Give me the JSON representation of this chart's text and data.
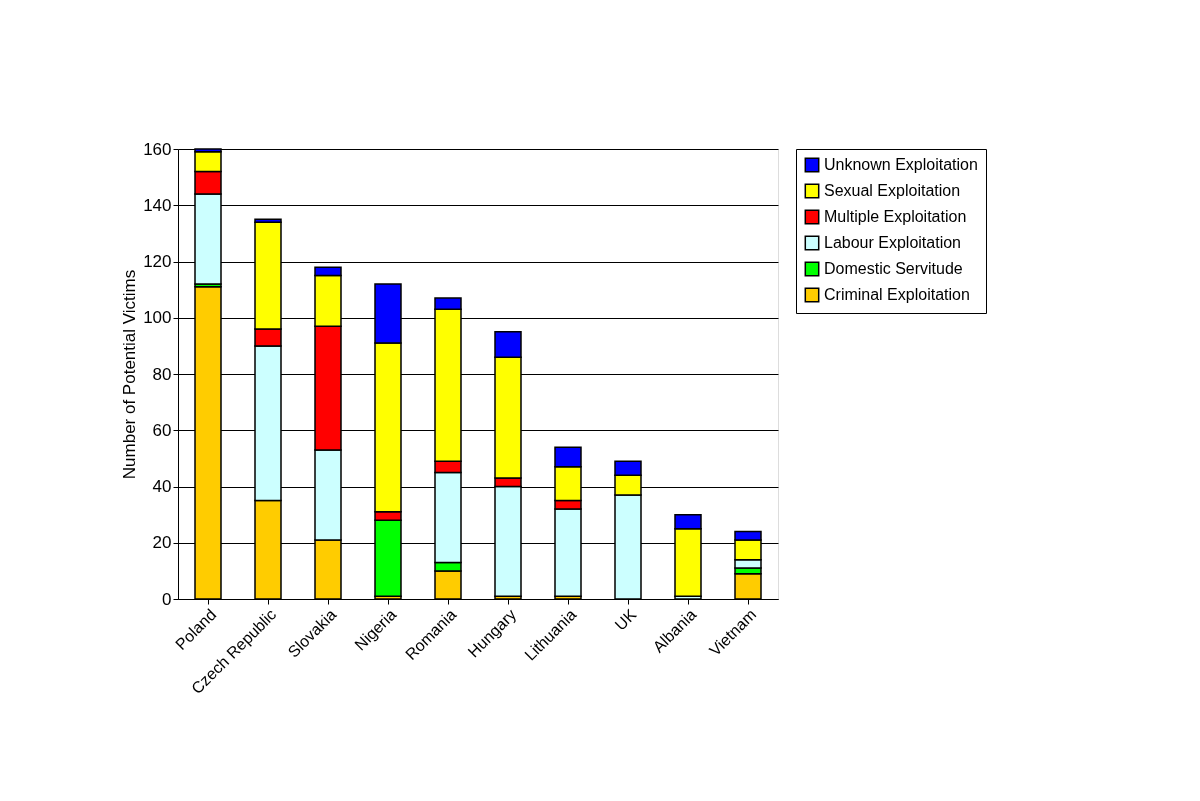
{
  "chart_data": {
    "type": "bar",
    "stacked": true,
    "ylabel": "Number of Potential Victims",
    "categories": [
      "Poland",
      "Czech Republic",
      "Slovakia",
      "Nigeria",
      "Romania",
      "Hungary",
      "Lithuania",
      "UK",
      "Albania",
      "Vietnam"
    ],
    "series": [
      {
        "name": "Criminal Exploitation",
        "color": "#ffcc00",
        "values": [
          111,
          35,
          21,
          1,
          10,
          1,
          1,
          0,
          0,
          9
        ]
      },
      {
        "name": "Domestic Servitude",
        "color": "#00ff00",
        "values": [
          1,
          0,
          0,
          27,
          3,
          0,
          0,
          0,
          0,
          2
        ]
      },
      {
        "name": "Labour Exploitation",
        "color": "#ccffff",
        "values": [
          32,
          55,
          32,
          0,
          32,
          39,
          31,
          37,
          1,
          3
        ]
      },
      {
        "name": "Multiple Exploitation",
        "color": "#ff0000",
        "values": [
          8,
          6,
          44,
          3,
          4,
          3,
          3,
          0,
          0,
          0
        ]
      },
      {
        "name": "Sexual Exploitation",
        "color": "#ffff00",
        "values": [
          7,
          38,
          18,
          60,
          54,
          43,
          12,
          7,
          24,
          7
        ]
      },
      {
        "name": "Unknown Exploitation",
        "color": "#0000ff",
        "values": [
          1,
          1,
          3,
          21,
          4,
          9,
          7,
          5,
          5,
          3
        ]
      }
    ],
    "ylim": [
      0,
      160
    ],
    "yticks": [
      0,
      20,
      40,
      60,
      80,
      100,
      120,
      140,
      160
    ],
    "grid": "y",
    "legend": "right"
  }
}
